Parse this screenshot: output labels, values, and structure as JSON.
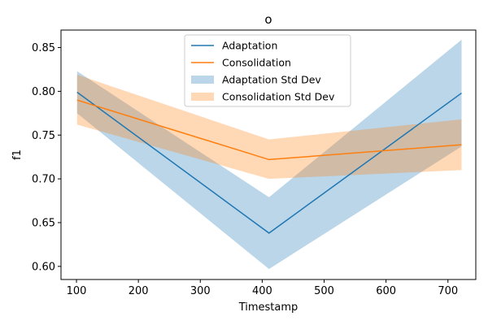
{
  "chart_data": {
    "type": "line",
    "title": "o",
    "xlabel": "Timestamp",
    "ylabel": "f1",
    "xlim": [
      75,
      745
    ],
    "ylim": [
      0.585,
      0.87
    ],
    "xticks": [
      100,
      200,
      300,
      400,
      500,
      600,
      700
    ],
    "yticks": [
      0.6,
      0.65,
      0.7,
      0.75,
      0.8,
      0.85
    ],
    "grid": false,
    "legend_position": "top-center",
    "x": [
      101,
      411,
      722
    ],
    "series": [
      {
        "name": "Adaptation",
        "color": "#1f77b4",
        "values": [
          0.799,
          0.638,
          0.798
        ],
        "band_name": "Adaptation Std Dev",
        "band_lower": [
          0.775,
          0.597,
          0.737
        ],
        "band_upper": [
          0.823,
          0.679,
          0.859
        ],
        "band_color": "#1f77b4",
        "band_opacity": 0.3
      },
      {
        "name": "Consolidation",
        "color": "#ff7f0e",
        "values": [
          0.79,
          0.722,
          0.739
        ],
        "band_name": "Consolidation Std Dev",
        "band_lower": [
          0.762,
          0.7,
          0.71
        ],
        "band_upper": [
          0.819,
          0.745,
          0.768
        ],
        "band_color": "#ff7f0e",
        "band_opacity": 0.3
      }
    ]
  }
}
